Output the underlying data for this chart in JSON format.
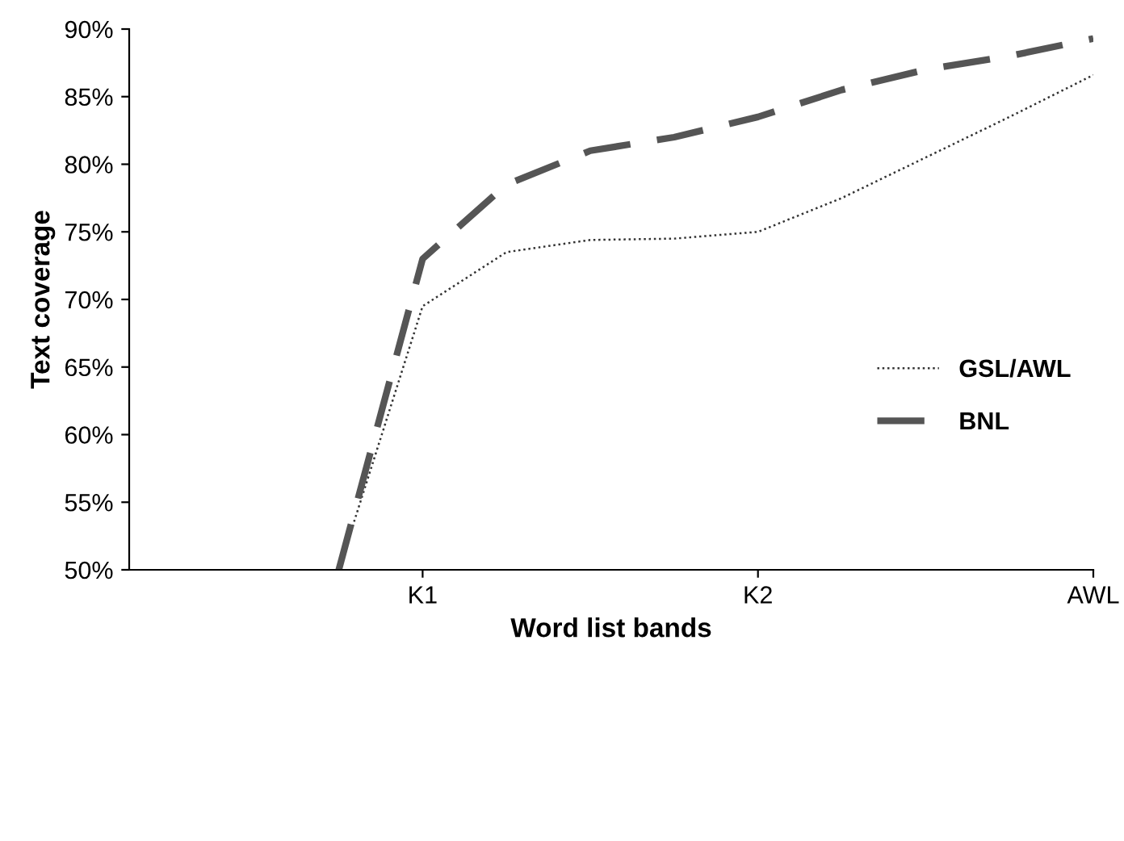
{
  "chart_data": {
    "type": "line",
    "xlabel": "Word list bands",
    "ylabel": "Text coverage",
    "categories": [
      null,
      null,
      null,
      "K1",
      null,
      null,
      null,
      "K2",
      null,
      null,
      null,
      "AWL"
    ],
    "ylim": [
      50,
      90
    ],
    "yticks": [
      {
        "value": 50,
        "label": "50%"
      },
      {
        "value": 55,
        "label": "55%"
      },
      {
        "value": 60,
        "label": "60%"
      },
      {
        "value": 65,
        "label": "65%"
      },
      {
        "value": 70,
        "label": "70%"
      },
      {
        "value": 75,
        "label": "75%"
      },
      {
        "value": 80,
        "label": "80%"
      },
      {
        "value": 85,
        "label": "85%"
      },
      {
        "value": 90,
        "label": "90%"
      }
    ],
    "grid": false,
    "legend": "right",
    "marker": "none",
    "series": [
      {
        "name": "GSL/AWL",
        "color": "#333333",
        "line_style": "dotted",
        "values": [
          null,
          null,
          50,
          69.5,
          73.5,
          74.4,
          74.5,
          75,
          77.5,
          80.5,
          83.5,
          86.6
        ]
      },
      {
        "name": "BNL",
        "color": "#555555",
        "line_style": "dashed",
        "values": [
          null,
          null,
          50,
          73,
          78.5,
          81,
          82,
          83.5,
          85.5,
          87,
          88,
          89.3
        ]
      }
    ]
  }
}
